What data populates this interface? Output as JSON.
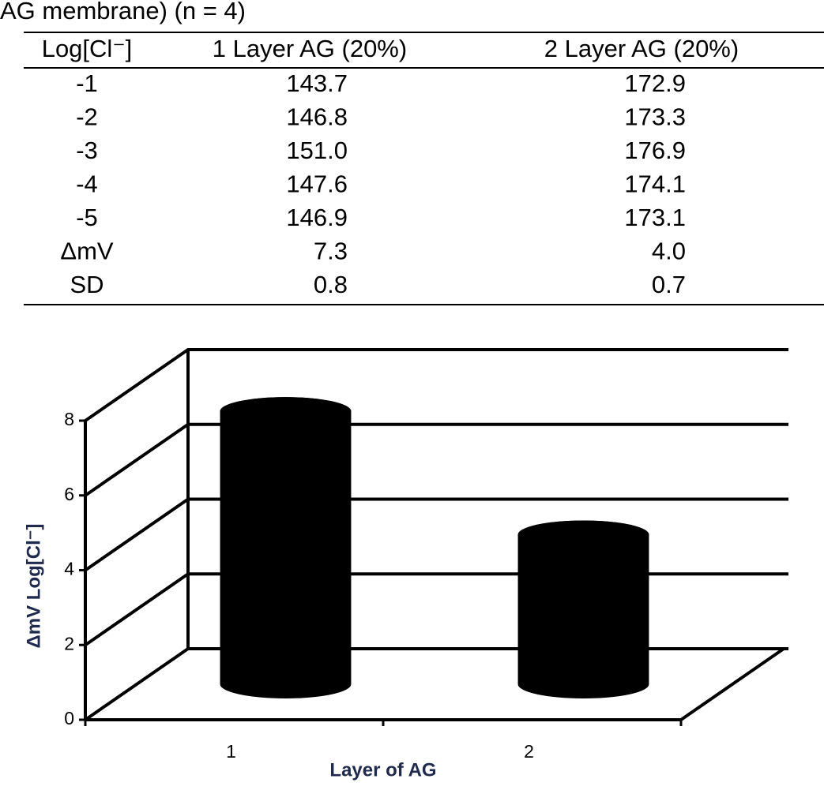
{
  "caption": "AG membrane) (n = 4)",
  "table": {
    "header": [
      "Log[Cl⁻]",
      "1 Layer AG (20%)",
      "2 Layer AG (20%)"
    ],
    "rows": [
      [
        "-1",
        "143.7",
        "172.9"
      ],
      [
        "-2",
        "146.8",
        "173.3"
      ],
      [
        "-3",
        "151.0",
        "176.9"
      ],
      [
        "-4",
        "147.6",
        "174.1"
      ],
      [
        "-5",
        "146.9",
        "173.1"
      ],
      [
        "ΔmV",
        "7.3",
        "4.0"
      ],
      [
        "SD",
        "0.8",
        "0.7"
      ]
    ]
  },
  "chart_data": {
    "type": "bar",
    "style": "3d-cylinder",
    "categories": [
      "1",
      "2"
    ],
    "values": [
      7.3,
      4.0
    ],
    "color": "#000000",
    "x_label": "Layer of AG",
    "y_label": "ΔmV Log[Cl⁻]",
    "ylim": [
      0,
      8
    ],
    "yticks": [
      0,
      2,
      4,
      6,
      8
    ],
    "grid": true
  }
}
